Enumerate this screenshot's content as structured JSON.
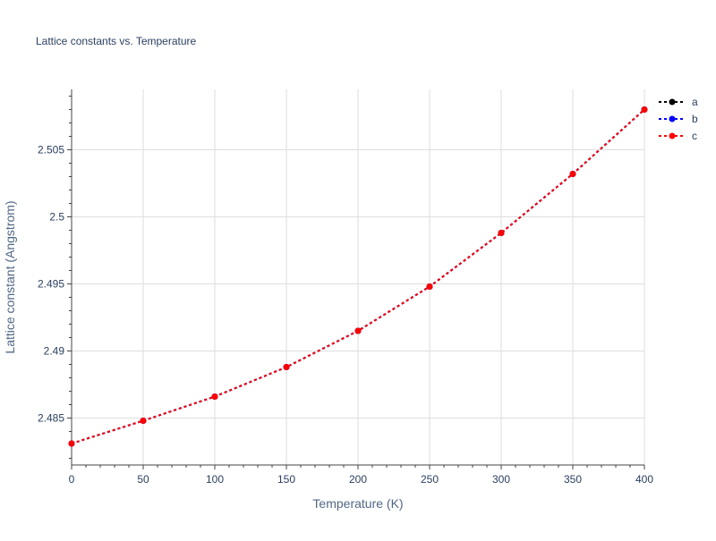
{
  "chart_data": {
    "type": "line",
    "title": "Lattice constants vs. Temperature",
    "xlabel": "Temperature (K)",
    "ylabel": "Lattice constant (Angstrom)",
    "xlim": [
      0,
      400
    ],
    "ylim": [
      2.4815,
      2.5095
    ],
    "x_ticks": [
      0,
      50,
      100,
      150,
      200,
      250,
      300,
      350,
      400
    ],
    "x_tick_labels": [
      "0",
      "50",
      "100",
      "150",
      "200",
      "250",
      "300",
      "350",
      "400"
    ],
    "y_ticks": [
      2.485,
      2.49,
      2.495,
      2.5,
      2.505
    ],
    "y_tick_labels": [
      "2.485",
      "2.49",
      "2.495",
      "2.5",
      "2.505"
    ],
    "grid": true,
    "legend_position": "top-right",
    "x": [
      0,
      50,
      100,
      150,
      200,
      250,
      300,
      350,
      400
    ],
    "series": [
      {
        "name": "a",
        "color": "#000000",
        "values": [
          2.4831,
          2.4848,
          2.4866,
          2.4888,
          2.4915,
          2.4948,
          2.4988,
          2.5032,
          2.508
        ]
      },
      {
        "name": "b",
        "color": "#0000ff",
        "values": [
          2.4831,
          2.4848,
          2.4866,
          2.4888,
          2.4915,
          2.4948,
          2.4988,
          2.5032,
          2.508
        ]
      },
      {
        "name": "c",
        "color": "#ff0000",
        "values": [
          2.4831,
          2.4848,
          2.4866,
          2.4888,
          2.4915,
          2.4948,
          2.4988,
          2.5032,
          2.508
        ]
      }
    ]
  }
}
